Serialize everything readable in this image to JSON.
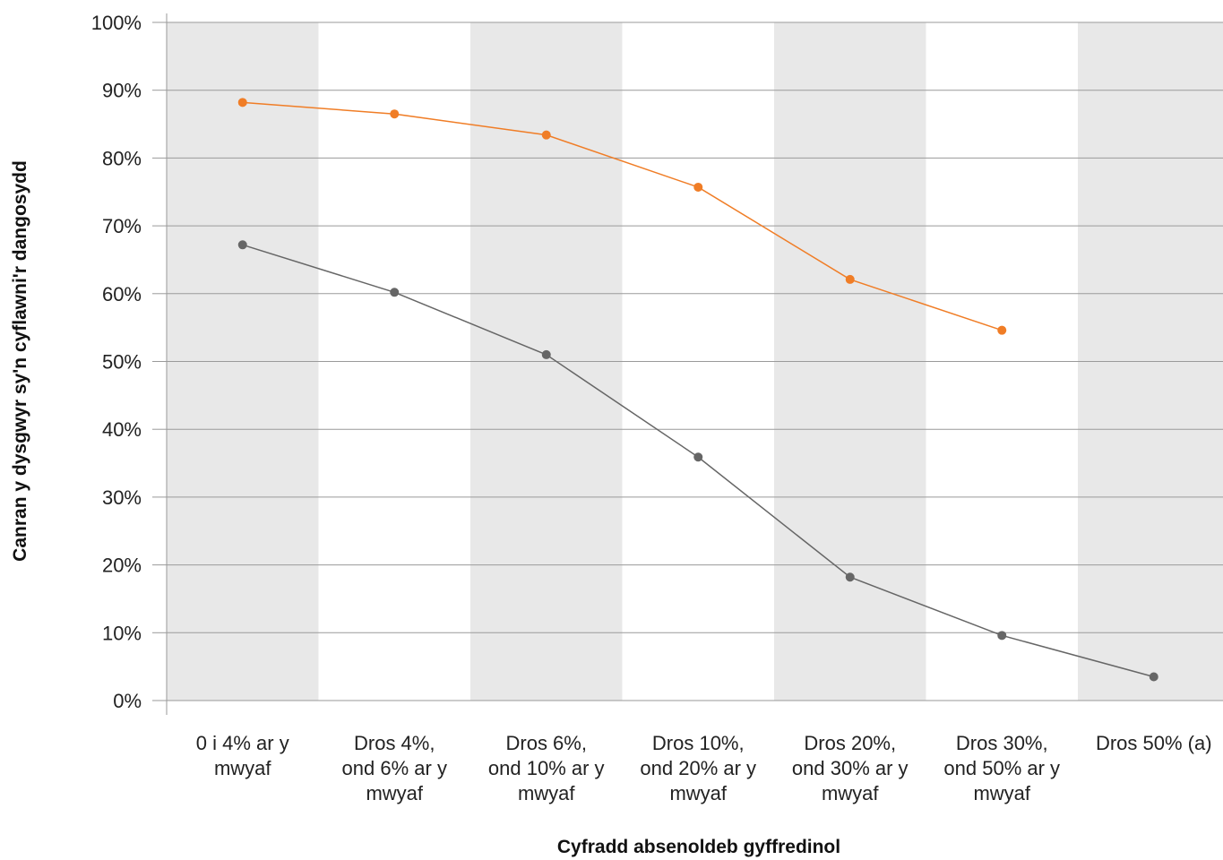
{
  "chart_data": {
    "type": "line",
    "xlabel": "Cyfradd absenoldeb gyffredinol",
    "ylabel": "Canran y dysgwyr sy'n cyflawni'r dangosydd",
    "ylim": [
      0,
      100
    ],
    "y_ticks": [
      "0%",
      "10%",
      "20%",
      "30%",
      "40%",
      "50%",
      "60%",
      "70%",
      "80%",
      "90%",
      "100%"
    ],
    "grid": true,
    "legend": "none",
    "categories": [
      [
        "0 i 4% ar y",
        "mwyaf"
      ],
      [
        "Dros 4%,",
        "ond 6% ar y",
        "mwyaf"
      ],
      [
        "Dros 6%,",
        "ond 10% ar y",
        "mwyaf"
      ],
      [
        "Dros 10%,",
        "ond 20% ar y",
        "mwyaf"
      ],
      [
        "Dros 20%,",
        "ond 30% ar y",
        "mwyaf"
      ],
      [
        "Dros 30%,",
        "ond 50% ar y",
        "mwyaf"
      ],
      [
        "Dros 50% (a)"
      ]
    ],
    "series": [
      {
        "color": "#f07d26",
        "values": [
          88.2,
          86.5,
          83.4,
          75.7,
          62.1,
          54.6,
          null
        ]
      },
      {
        "color": "#666666",
        "values": [
          67.2,
          60.2,
          51.0,
          35.9,
          18.2,
          9.6,
          3.5
        ]
      }
    ],
    "band_color": "#e8e8e8",
    "grid_color": "#9a9a9a"
  }
}
